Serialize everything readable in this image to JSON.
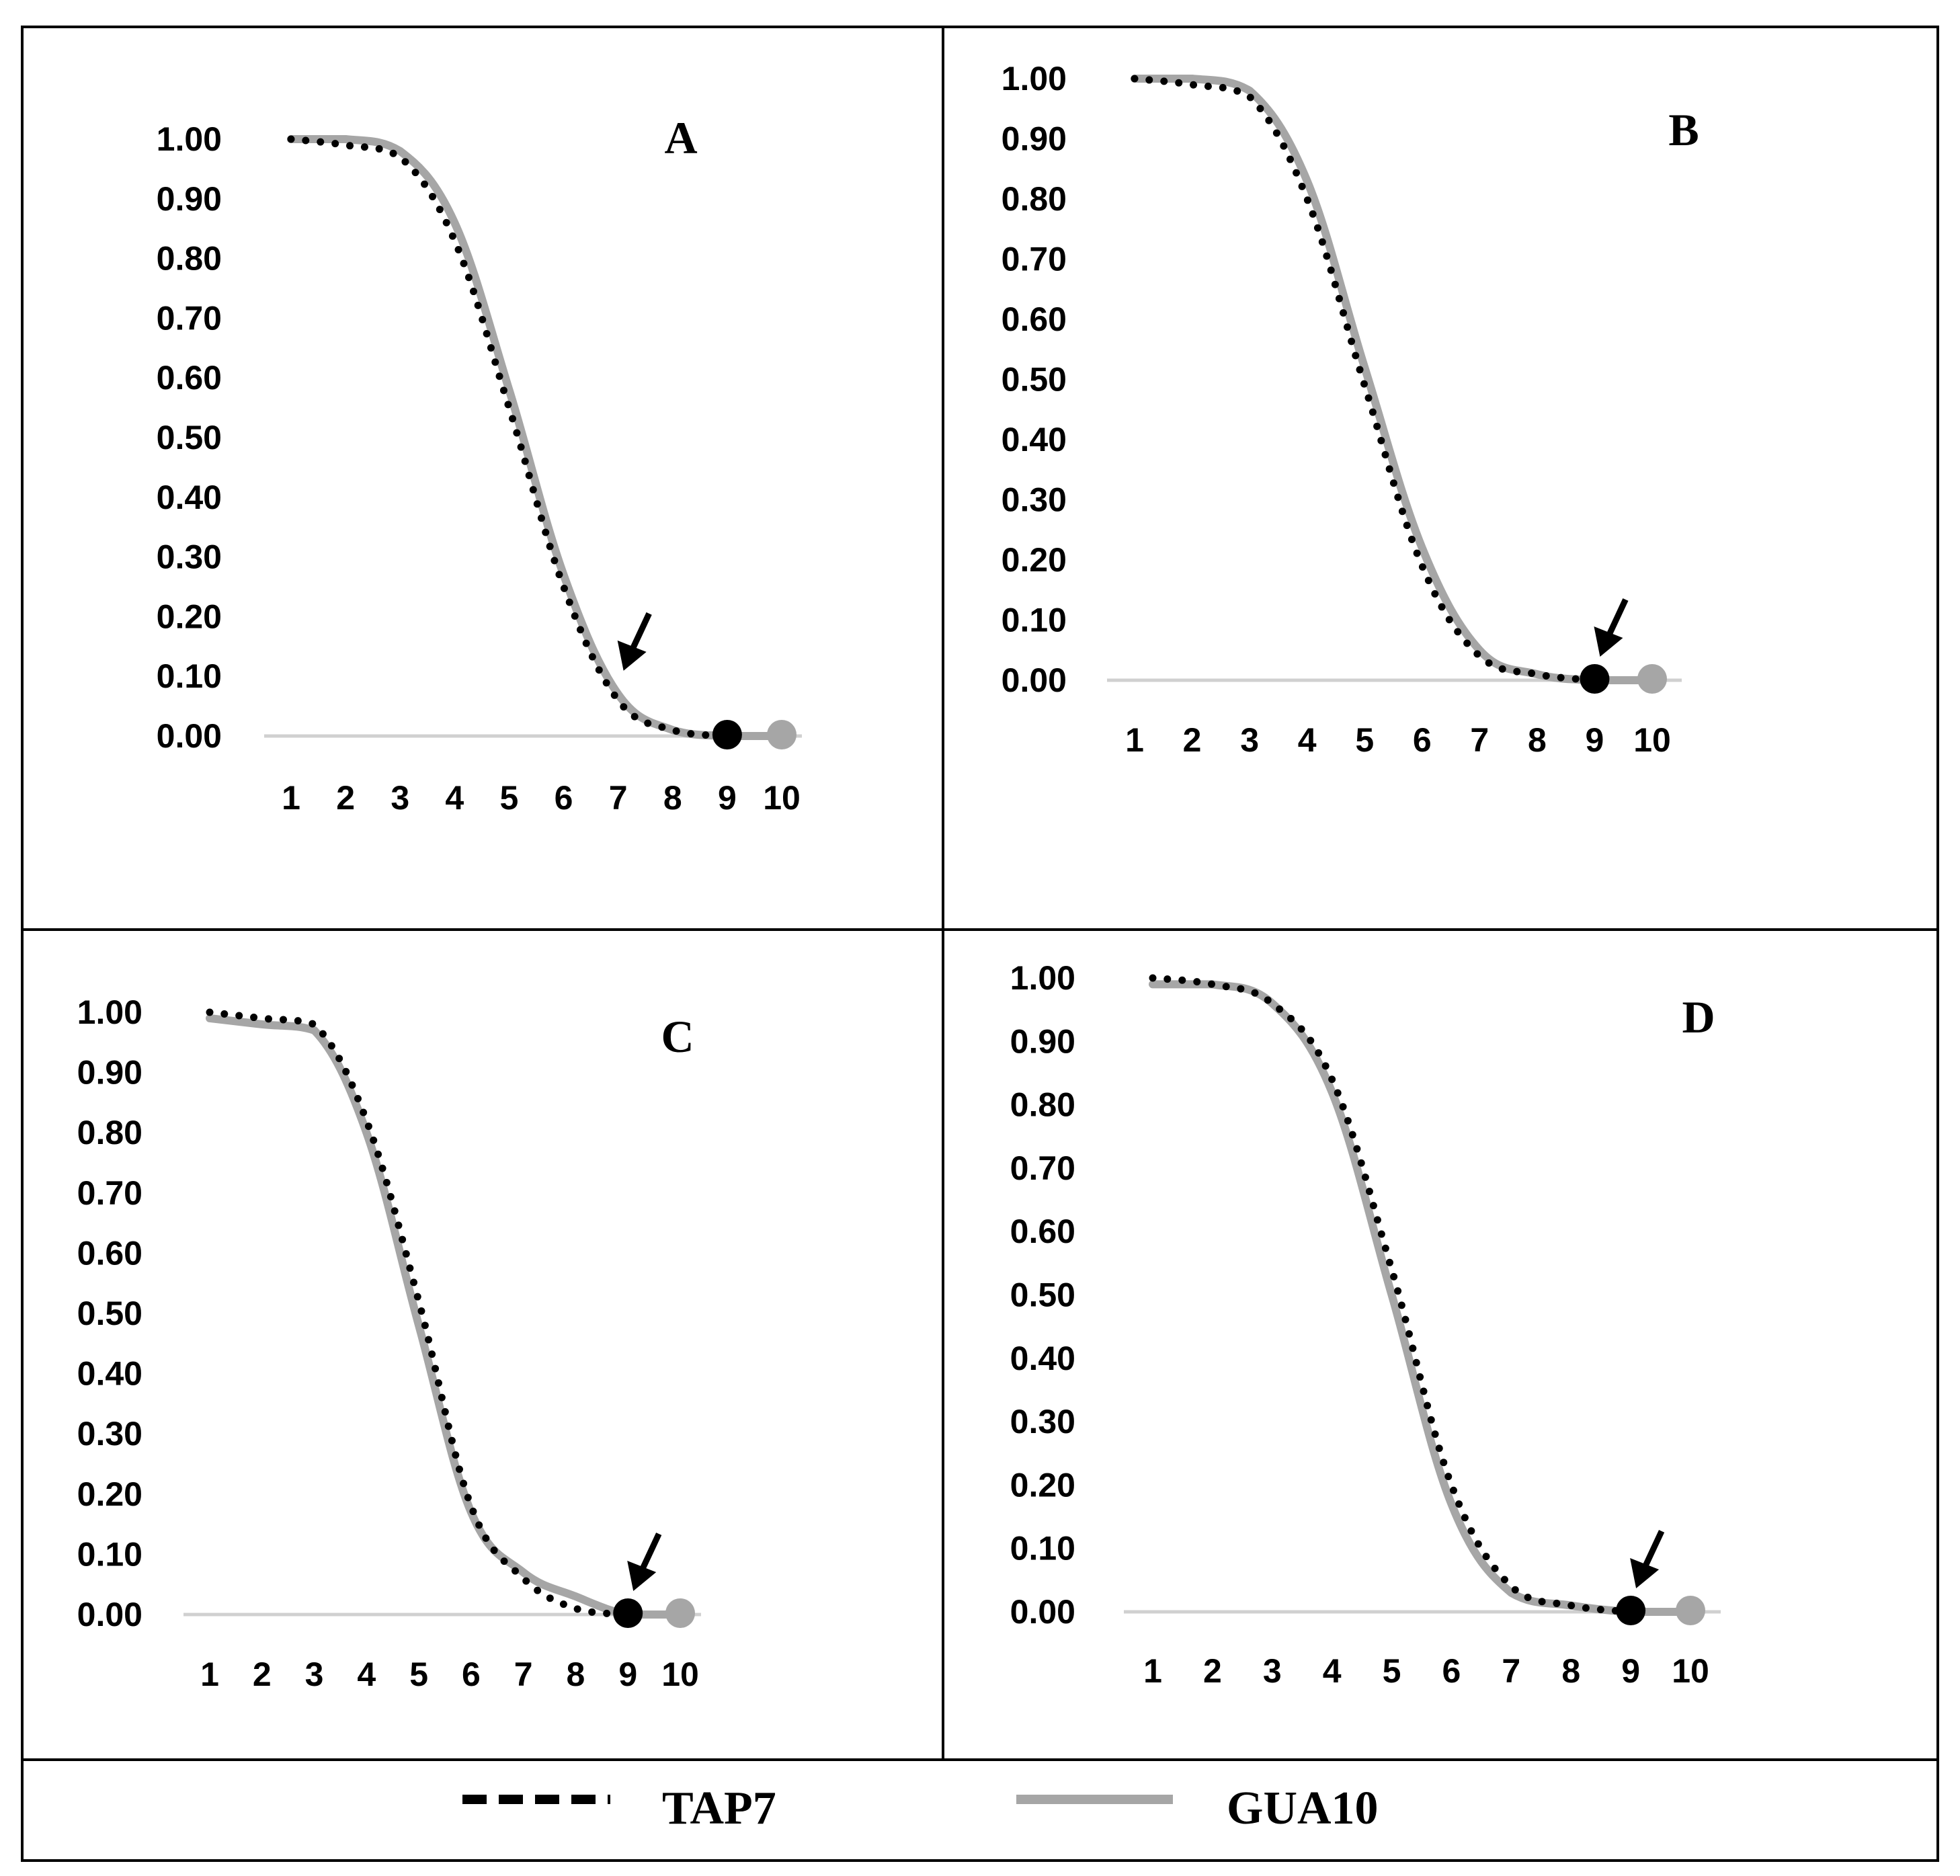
{
  "chart_data": [
    {
      "type": "line",
      "panel": "A",
      "title": "A",
      "categories": [
        "1",
        "2",
        "3",
        "4",
        "5",
        "6",
        "7",
        "8",
        "9",
        "10"
      ],
      "ylim": [
        0,
        1
      ],
      "ytick_labels": [
        "1.00",
        "0.90",
        "0.80",
        "0.70",
        "0.60",
        "0.50",
        "0.40",
        "0.30",
        "0.20",
        "0.10",
        "0.00"
      ],
      "series": [
        {
          "name": "TAP7",
          "style": "dotted",
          "color": "#000000",
          "values": [
            1.0,
            0.99,
            0.97,
            0.83,
            0.55,
            0.25,
            0.06,
            0.01,
            0.0,
            null
          ]
        },
        {
          "name": "GUA10",
          "style": "solid",
          "color": "#a6a6a6",
          "values": [
            1.0,
            1.0,
            0.98,
            0.86,
            0.58,
            0.27,
            0.07,
            0.01,
            0.0,
            0.0
          ]
        }
      ],
      "annotation": {
        "type": "arrow",
        "at_category": 7
      }
    },
    {
      "type": "line",
      "panel": "B",
      "title": "B",
      "categories": [
        "1",
        "2",
        "3",
        "4",
        "5",
        "6",
        "7",
        "8",
        "9",
        "10"
      ],
      "ylim": [
        0,
        1
      ],
      "ytick_labels": [
        "1.00",
        "0.90",
        "0.80",
        "0.70",
        "0.60",
        "0.50",
        "0.40",
        "0.30",
        "0.20",
        "0.10",
        "0.00"
      ],
      "series": [
        {
          "name": "TAP7",
          "style": "dotted",
          "color": "#000000",
          "values": [
            1.0,
            0.99,
            0.97,
            0.8,
            0.49,
            0.19,
            0.04,
            0.01,
            0.0,
            null
          ]
        },
        {
          "name": "GUA10",
          "style": "solid",
          "color": "#a6a6a6",
          "values": [
            1.0,
            1.0,
            0.98,
            0.83,
            0.52,
            0.22,
            0.05,
            0.01,
            0.0,
            0.0
          ]
        }
      ],
      "annotation": {
        "type": "arrow",
        "at_category": 9
      }
    },
    {
      "type": "line",
      "panel": "C",
      "title": "C",
      "categories": [
        "1",
        "2",
        "3",
        "4",
        "5",
        "6",
        "7",
        "8",
        "9",
        "10"
      ],
      "ylim": [
        0,
        1
      ],
      "ytick_labels": [
        "1.00",
        "0.90",
        "0.80",
        "0.70",
        "0.60",
        "0.50",
        "0.40",
        "0.30",
        "0.20",
        "0.10",
        "0.00"
      ],
      "series": [
        {
          "name": "TAP7",
          "style": "dotted",
          "color": "#000000",
          "values": [
            1.0,
            0.99,
            0.98,
            0.82,
            0.52,
            0.18,
            0.06,
            0.01,
            0.0,
            null
          ]
        },
        {
          "name": "GUA10",
          "style": "solid",
          "color": "#a6a6a6",
          "values": [
            0.99,
            0.98,
            0.97,
            0.8,
            0.48,
            0.17,
            0.07,
            0.03,
            0.0,
            0.0
          ]
        }
      ],
      "annotation": {
        "type": "arrow",
        "at_category": 9
      }
    },
    {
      "type": "line",
      "panel": "D",
      "title": "D",
      "categories": [
        "1",
        "2",
        "3",
        "4",
        "5",
        "6",
        "7",
        "8",
        "9",
        "10"
      ],
      "ylim": [
        0,
        1
      ],
      "ytick_labels": [
        "1.00",
        "0.90",
        "0.80",
        "0.70",
        "0.60",
        "0.50",
        "0.40",
        "0.30",
        "0.20",
        "0.10",
        "0.00"
      ],
      "series": [
        {
          "name": "TAP7",
          "style": "dotted",
          "color": "#000000",
          "values": [
            1.0,
            0.99,
            0.96,
            0.84,
            0.54,
            0.2,
            0.04,
            0.01,
            0.0,
            null
          ]
        },
        {
          "name": "GUA10",
          "style": "solid",
          "color": "#a6a6a6",
          "values": [
            0.99,
            0.99,
            0.96,
            0.82,
            0.5,
            0.17,
            0.03,
            0.01,
            0.0,
            0.0
          ]
        }
      ],
      "annotation": {
        "type": "arrow",
        "at_category": 9
      }
    }
  ],
  "legend": [
    {
      "name": "TAP7",
      "label": "TAP7",
      "style": "dashed",
      "color": "#000000"
    },
    {
      "name": "GUA10",
      "label": "GUA10",
      "style": "solid",
      "color": "#a6a6a6"
    }
  ]
}
